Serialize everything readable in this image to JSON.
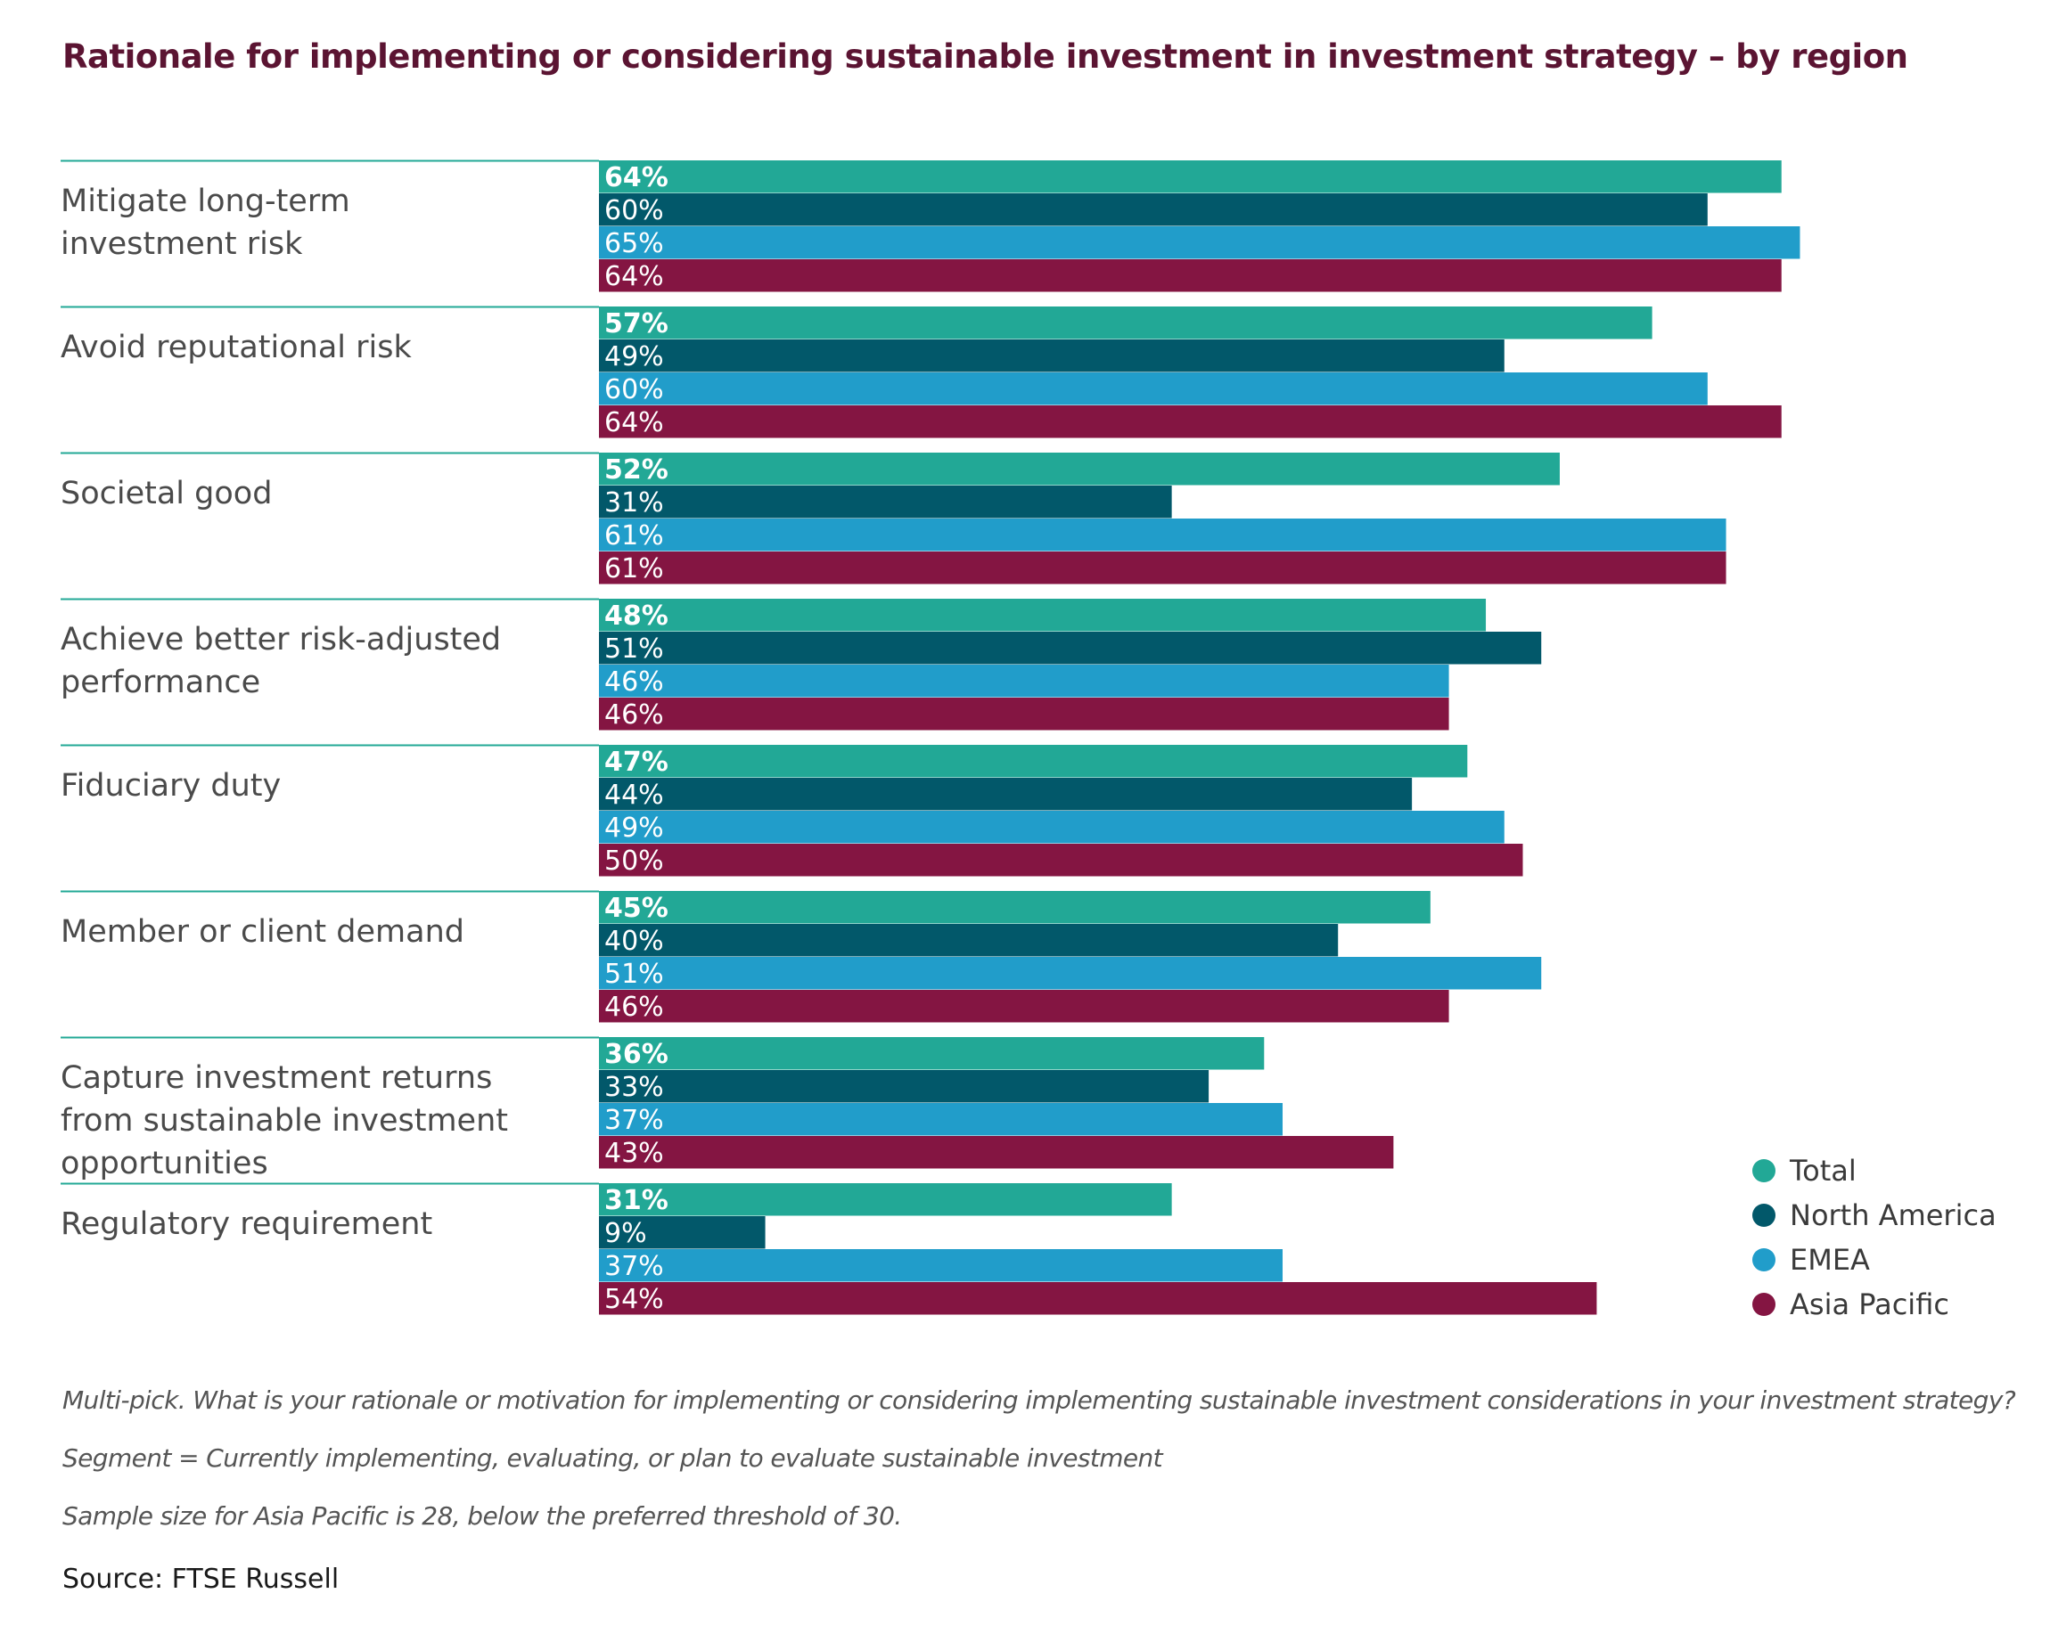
{
  "chart_data": {
    "type": "bar",
    "orientation": "horizontal",
    "title": "Rationale for implementing or considering sustainable investment in investment strategy – by region",
    "categories": [
      "Mitigate long-term investment risk",
      "Avoid reputational risk",
      "Societal good",
      "Achieve better risk-adjusted performance",
      "Fiduciary duty",
      "Member or client demand",
      "Capture investment returns from sustainable investment opportunities",
      "Regulatory requirement"
    ],
    "category_lines": [
      [
        "Mitigate long-term",
        "investment risk"
      ],
      [
        "Avoid reputational risk"
      ],
      [
        "Societal good"
      ],
      [
        "Achieve better risk-adjusted",
        "performance"
      ],
      [
        "Fiduciary duty"
      ],
      [
        "Member or client demand"
      ],
      [
        "Capture investment returns",
        "from sustainable investment",
        "opportunities"
      ],
      [
        "Regulatory requirement"
      ]
    ],
    "series": [
      {
        "name": "Total",
        "color": "#22a896",
        "bold_labels": true,
        "values": [
          64,
          57,
          52,
          48,
          47,
          45,
          36,
          31
        ]
      },
      {
        "name": "North America",
        "color": "#02586a",
        "bold_labels": false,
        "values": [
          60,
          49,
          31,
          51,
          44,
          40,
          33,
          9
        ]
      },
      {
        "name": "EMEA",
        "color": "#219dca",
        "bold_labels": false,
        "values": [
          65,
          60,
          61,
          46,
          49,
          51,
          37,
          37
        ]
      },
      {
        "name": "Asia Pacific",
        "color": "#841542",
        "bold_labels": false,
        "values": [
          64,
          64,
          61,
          46,
          50,
          46,
          43,
          54
        ]
      }
    ],
    "value_suffix": "%",
    "xlim": [
      0,
      65
    ],
    "grid": false,
    "legend_position": "bottom-right"
  },
  "colors": {
    "title": "#5b1432",
    "separator": "#22a896",
    "bar_text": "#ffffff"
  },
  "notes": [
    "Multi-pick. What is your rationale or motivation for implementing or considering implementing sustainable investment considerations in your investment strategy?",
    "Segment = Currently implementing, evaluating, or plan to evaluate sustainable investment",
    "Sample size for Asia Pacific is 28, below the preferred threshold of 30."
  ],
  "source": "Source: FTSE Russell"
}
